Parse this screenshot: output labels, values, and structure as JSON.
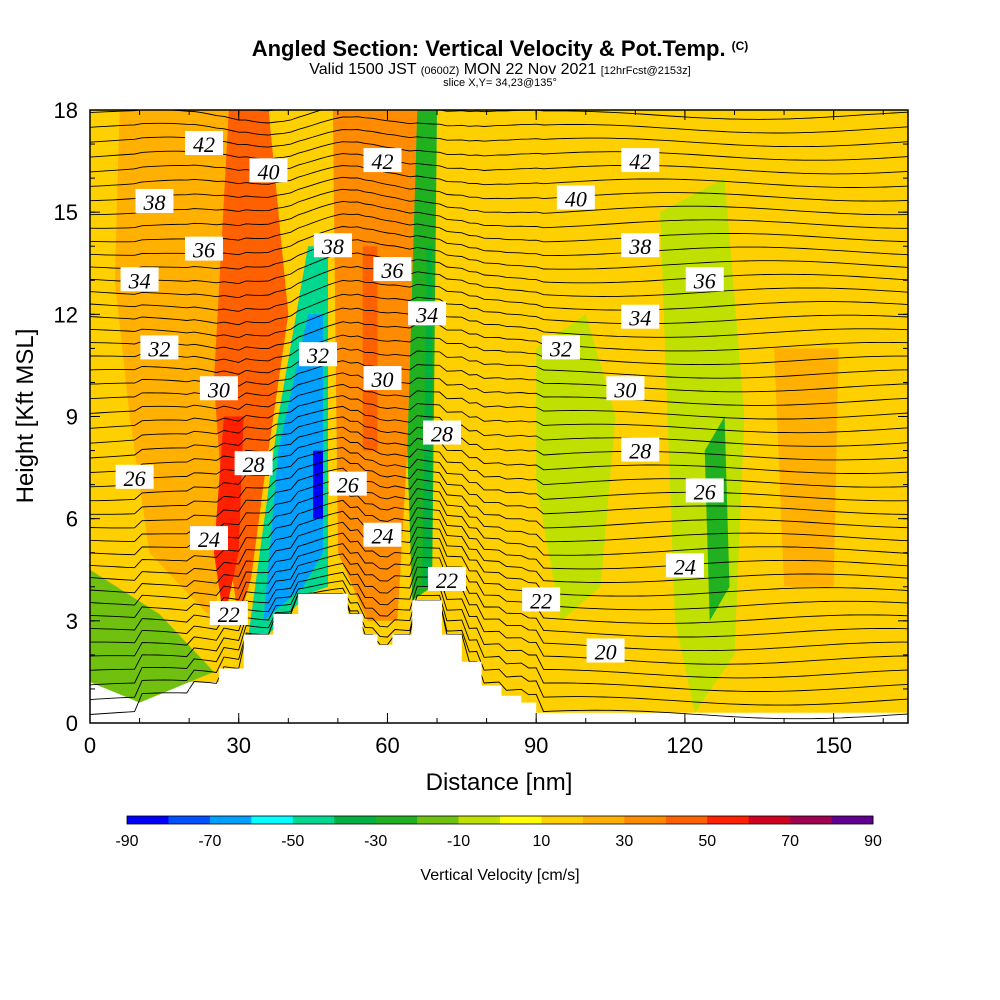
{
  "header": {
    "title": "Angled Section: Vertical Velocity & Pot.Temp.",
    "title_unit": "(C)",
    "valid_prefix": "Valid 1500 JST",
    "valid_utc": "(0600Z)",
    "valid_date": "MON 22 Nov 2021",
    "forecast": "[12hrFcst@2153z]",
    "slice": "slice X,Y= 34,23@135°"
  },
  "chart_data": {
    "type": "heatmap",
    "xlabel": "Distance [nm]",
    "ylabel": "Height [Kft MSL]",
    "xlim": [
      0,
      165
    ],
    "ylim": [
      0,
      18
    ],
    "x_ticks": [
      "0",
      "30",
      "60",
      "90",
      "120",
      "150"
    ],
    "y_ticks": [
      "0",
      "3",
      "6",
      "9",
      "12",
      "15",
      "18"
    ],
    "colorbar": {
      "label": "Vertical Velocity [cm/s]",
      "tick_labels": [
        "-90",
        "-70",
        "-50",
        "-30",
        "-10",
        "10",
        "30",
        "50",
        "70",
        "90"
      ],
      "levels": [
        -90,
        -80,
        -70,
        -60,
        -50,
        -40,
        -30,
        -20,
        -10,
        0,
        10,
        20,
        30,
        40,
        50,
        60,
        70,
        80,
        90
      ],
      "colors": [
        "#0000ff",
        "#0050ff",
        "#00a0ff",
        "#00ffff",
        "#00d890",
        "#00b040",
        "#20b020",
        "#70c010",
        "#c0e000",
        "#ffff00",
        "#ffd000",
        "#ffb000",
        "#ff8c00",
        "#ff6000",
        "#ff2000",
        "#d00020",
        "#a00050",
        "#600090"
      ]
    },
    "terrain": [
      [
        0,
        0
      ],
      [
        10,
        0
      ],
      [
        10,
        0.6
      ],
      [
        20,
        0.6
      ],
      [
        20,
        1
      ],
      [
        26,
        1
      ],
      [
        26,
        1.6
      ],
      [
        31,
        1.6
      ],
      [
        31,
        2.6
      ],
      [
        37,
        2.6
      ],
      [
        37,
        3.2
      ],
      [
        42,
        3.2
      ],
      [
        42,
        3.8
      ],
      [
        52,
        3.8
      ],
      [
        52,
        3.2
      ],
      [
        55,
        3.2
      ],
      [
        55,
        2.6
      ],
      [
        58,
        2.6
      ],
      [
        58,
        2.3
      ],
      [
        61,
        2.3
      ],
      [
        61,
        2.6
      ],
      [
        65,
        2.6
      ],
      [
        65,
        3.6
      ],
      [
        71,
        3.6
      ],
      [
        71,
        2.6
      ],
      [
        75,
        2.6
      ],
      [
        75,
        1.8
      ],
      [
        79,
        1.8
      ],
      [
        79,
        1.1
      ],
      [
        83,
        1.1
      ],
      [
        83,
        0.8
      ],
      [
        87,
        0.8
      ],
      [
        87,
        0.6
      ],
      [
        90,
        0.6
      ],
      [
        90,
        0
      ]
    ],
    "velocity_regions": [
      {
        "x": [
          [
            0,
            1.2
          ],
          [
            0,
            18
          ],
          [
            165,
            18
          ],
          [
            165,
            0.3
          ],
          [
            90,
            0.3
          ],
          [
            60,
            1.2
          ]
        ],
        "value": 10
      },
      {
        "x": [
          [
            0,
            1.2
          ],
          [
            0,
            4.5
          ],
          [
            14,
            3.2
          ],
          [
            25,
            1.5
          ],
          [
            10,
            0.6
          ]
        ],
        "value": -15
      },
      {
        "x": [
          [
            18,
            18
          ],
          [
            33,
            18
          ],
          [
            29,
            7
          ],
          [
            25,
            3
          ],
          [
            12,
            5
          ],
          [
            8,
            9
          ],
          [
            5,
            13
          ],
          [
            6,
            18
          ]
        ],
        "value": 25
      },
      {
        "x": [
          [
            28,
            18
          ],
          [
            46,
            18
          ],
          [
            44,
            12
          ],
          [
            39,
            9
          ],
          [
            34,
            5
          ],
          [
            30,
            3
          ],
          [
            27,
            6
          ],
          [
            25,
            10
          ]
        ],
        "value": 45
      },
      {
        "x": [
          [
            36,
            18
          ],
          [
            44,
            18
          ],
          [
            42,
            15
          ],
          [
            38,
            15
          ]
        ],
        "value": 60
      },
      {
        "x": [
          [
            27,
            9
          ],
          [
            31,
            9
          ],
          [
            30,
            5
          ],
          [
            27,
            3
          ],
          [
            25,
            5
          ]
        ],
        "value": 55
      },
      {
        "x": [
          [
            36,
            18
          ],
          [
            46,
            18
          ],
          [
            48,
            4
          ],
          [
            44,
            3.8
          ],
          [
            35,
            2.6
          ],
          [
            31,
            2.6
          ],
          [
            35,
            7
          ],
          [
            40,
            12
          ]
        ],
        "value": 10
      },
      {
        "x": [
          [
            44,
            14
          ],
          [
            48,
            14
          ],
          [
            48,
            4
          ],
          [
            44,
            3.8
          ],
          [
            36,
            2.6
          ],
          [
            32,
            2.6
          ],
          [
            38,
            9
          ]
        ],
        "value": -45
      },
      {
        "x": [
          [
            44,
            12
          ],
          [
            47,
            12
          ],
          [
            47,
            5
          ],
          [
            43,
            4
          ],
          [
            35,
            3
          ],
          [
            38,
            8
          ]
        ],
        "value": -70
      },
      {
        "x": [
          [
            45,
            8
          ],
          [
            47,
            8
          ],
          [
            47,
            6
          ],
          [
            45,
            6
          ]
        ],
        "value": -90
      },
      {
        "x": [
          [
            49,
            18
          ],
          [
            66,
            18
          ],
          [
            64,
            8
          ],
          [
            62,
            3
          ],
          [
            56,
            3
          ],
          [
            50,
            5
          ]
        ],
        "value": 30
      },
      {
        "x": [
          [
            55,
            14
          ],
          [
            58,
            14
          ],
          [
            58,
            8
          ],
          [
            55,
            8
          ]
        ],
        "value": 45
      },
      {
        "x": [
          [
            66,
            18
          ],
          [
            70,
            18
          ],
          [
            69,
            4
          ],
          [
            65,
            3.6
          ],
          [
            64,
            8
          ]
        ],
        "value": -25
      },
      {
        "x": [
          [
            68,
            14
          ],
          [
            69,
            14
          ],
          [
            69,
            4
          ],
          [
            67,
            4
          ]
        ],
        "value": -35
      },
      {
        "x": [
          [
            70,
            18
          ],
          [
            85,
            18
          ],
          [
            84,
            10
          ],
          [
            80,
            5
          ],
          [
            72,
            4
          ]
        ],
        "value": 15
      },
      {
        "x": [
          [
            90,
            11
          ],
          [
            100,
            12
          ],
          [
            106,
            9
          ],
          [
            103,
            4
          ],
          [
            95,
            3
          ],
          [
            90,
            7
          ]
        ],
        "value": -10
      },
      {
        "x": [
          [
            115,
            15
          ],
          [
            128,
            16
          ],
          [
            132,
            9
          ],
          [
            130,
            2
          ],
          [
            122,
            0.3
          ],
          [
            118,
            3
          ]
        ],
        "value": -10
      },
      {
        "x": [
          [
            124,
            8
          ],
          [
            128,
            9
          ],
          [
            129,
            4
          ],
          [
            125,
            3
          ]
        ],
        "value": -25
      },
      {
        "x": [
          [
            138,
            11
          ],
          [
            151,
            11
          ],
          [
            150,
            4
          ],
          [
            140,
            4
          ]
        ],
        "value": 25
      },
      {
        "x": [
          [
            134,
            18
          ],
          [
            150,
            18
          ],
          [
            154,
            12
          ],
          [
            146,
            11
          ],
          [
            136,
            13
          ]
        ],
        "value": 15
      }
    ],
    "theta_contour_labels": [
      {
        "value": "42",
        "x": 23,
        "y": 17.0
      },
      {
        "value": "40",
        "x": 36,
        "y": 16.2
      },
      {
        "value": "38",
        "x": 13,
        "y": 15.3
      },
      {
        "value": "36",
        "x": 23,
        "y": 13.9
      },
      {
        "value": "34",
        "x": 10,
        "y": 13.0
      },
      {
        "value": "32",
        "x": 14,
        "y": 11.0
      },
      {
        "value": "30",
        "x": 26,
        "y": 9.8
      },
      {
        "value": "28",
        "x": 33,
        "y": 7.6
      },
      {
        "value": "26",
        "x": 9,
        "y": 7.2
      },
      {
        "value": "24",
        "x": 24,
        "y": 5.4
      },
      {
        "value": "22",
        "x": 28,
        "y": 3.2
      },
      {
        "value": "42",
        "x": 59,
        "y": 16.5
      },
      {
        "value": "38",
        "x": 49,
        "y": 14.0
      },
      {
        "value": "36",
        "x": 61,
        "y": 13.3
      },
      {
        "value": "34",
        "x": 68,
        "y": 12.0
      },
      {
        "value": "32",
        "x": 46,
        "y": 10.8
      },
      {
        "value": "30",
        "x": 59,
        "y": 10.1
      },
      {
        "value": "28",
        "x": 71,
        "y": 8.5
      },
      {
        "value": "26",
        "x": 52,
        "y": 7.0
      },
      {
        "value": "24",
        "x": 59,
        "y": 5.5
      },
      {
        "value": "22",
        "x": 72,
        "y": 4.2
      },
      {
        "value": "42",
        "x": 111,
        "y": 16.5
      },
      {
        "value": "40",
        "x": 98,
        "y": 15.4
      },
      {
        "value": "38",
        "x": 111,
        "y": 14.0
      },
      {
        "value": "36",
        "x": 124,
        "y": 13.0
      },
      {
        "value": "34",
        "x": 111,
        "y": 11.9
      },
      {
        "value": "32",
        "x": 95,
        "y": 11.0
      },
      {
        "value": "30",
        "x": 108,
        "y": 9.8
      },
      {
        "value": "28",
        "x": 111,
        "y": 8.0
      },
      {
        "value": "26",
        "x": 124,
        "y": 6.8
      },
      {
        "value": "24",
        "x": 120,
        "y": 4.6
      },
      {
        "value": "22",
        "x": 91,
        "y": 3.6
      },
      {
        "value": "20",
        "x": 104,
        "y": 2.1
      }
    ],
    "grid": false,
    "legend": "bottom"
  }
}
